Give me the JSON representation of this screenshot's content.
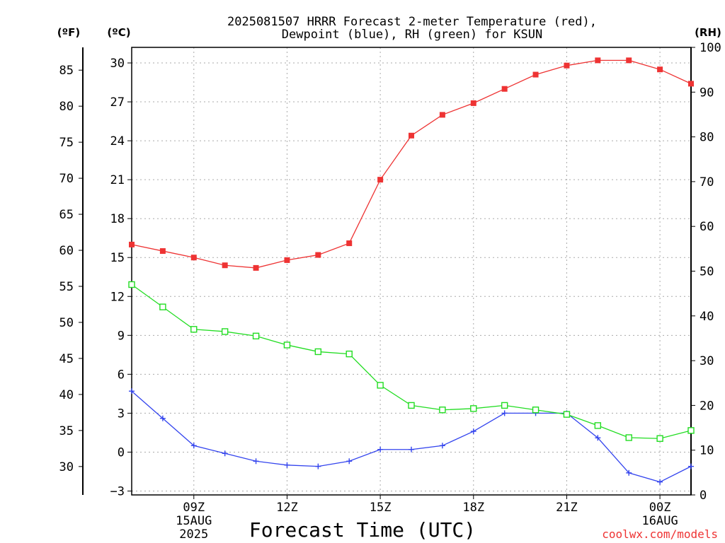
{
  "chart_data": {
    "type": "line",
    "title_line1": "2025081507 HRRR Forecast 2-meter Temperature (red),",
    "title_line2": "Dewpoint (blue), RH (green) for KSUN",
    "xlabel": "Forecast Time (UTC)",
    "credit": "coolwx.com/models",
    "left_f_label": "(ºF)",
    "left_c_label": "(ºC)",
    "right_label": "(RH)",
    "x_ticks": [
      {
        "hour": 9,
        "lines": [
          "09Z",
          "15AUG",
          "2025"
        ]
      },
      {
        "hour": 12,
        "lines": [
          "12Z"
        ]
      },
      {
        "hour": 15,
        "lines": [
          "15Z"
        ]
      },
      {
        "hour": 18,
        "lines": [
          "18Z"
        ]
      },
      {
        "hour": 21,
        "lines": [
          "21Z"
        ]
      },
      {
        "hour": 24,
        "lines": [
          "00Z",
          "16AUG"
        ]
      }
    ],
    "xlim": [
      7,
      25
    ],
    "c_axis": {
      "ylim": [
        -3.3,
        31.2
      ],
      "ticks": [
        30,
        27,
        24,
        21,
        18,
        15,
        12,
        9,
        6,
        3,
        0,
        -3
      ],
      "tick_labels": [
        "30",
        "27",
        "24",
        "21",
        "18",
        "15",
        "12",
        "9",
        "6",
        "3",
        "0",
        "−3"
      ]
    },
    "f_axis": {
      "ticks": [
        85,
        80,
        75,
        70,
        65,
        60,
        55,
        50,
        45,
        40,
        35,
        30
      ]
    },
    "rh_axis": {
      "ylim": [
        0,
        100
      ],
      "ticks": [
        100,
        90,
        80,
        70,
        60,
        50,
        40,
        30,
        20,
        10,
        0
      ]
    },
    "x": [
      7,
      8,
      9,
      10,
      11,
      12,
      13,
      14,
      15,
      16,
      17,
      18,
      19,
      20,
      21,
      22,
      23,
      24,
      25
    ],
    "series": [
      {
        "name": "Temperature",
        "unit": "C",
        "color": "#ee3333",
        "marker": "filled-square",
        "values": [
          16.0,
          15.5,
          15.0,
          14.4,
          14.2,
          14.8,
          15.2,
          16.1,
          21.0,
          24.4,
          26.0,
          26.9,
          28.0,
          29.1,
          29.8,
          30.2,
          30.2,
          29.5,
          28.4
        ]
      },
      {
        "name": "Dewpoint",
        "unit": "C",
        "color": "#3344ee",
        "marker": "plus",
        "values": [
          4.7,
          2.6,
          0.5,
          -0.1,
          -0.7,
          -1.0,
          -1.1,
          -0.7,
          0.2,
          0.2,
          0.5,
          1.6,
          3.0,
          3.0,
          3.0,
          1.1,
          -1.6,
          -2.3,
          -1.1
        ]
      },
      {
        "name": "RH",
        "unit": "%",
        "color": "#22dd22",
        "marker": "open-square",
        "values": [
          47,
          42,
          37,
          36.5,
          35.5,
          33.5,
          32,
          31.5,
          24.5,
          20,
          19,
          19.3,
          20,
          19,
          18,
          15.5,
          12.8,
          12.6,
          14.4
        ]
      }
    ],
    "grid": true
  }
}
